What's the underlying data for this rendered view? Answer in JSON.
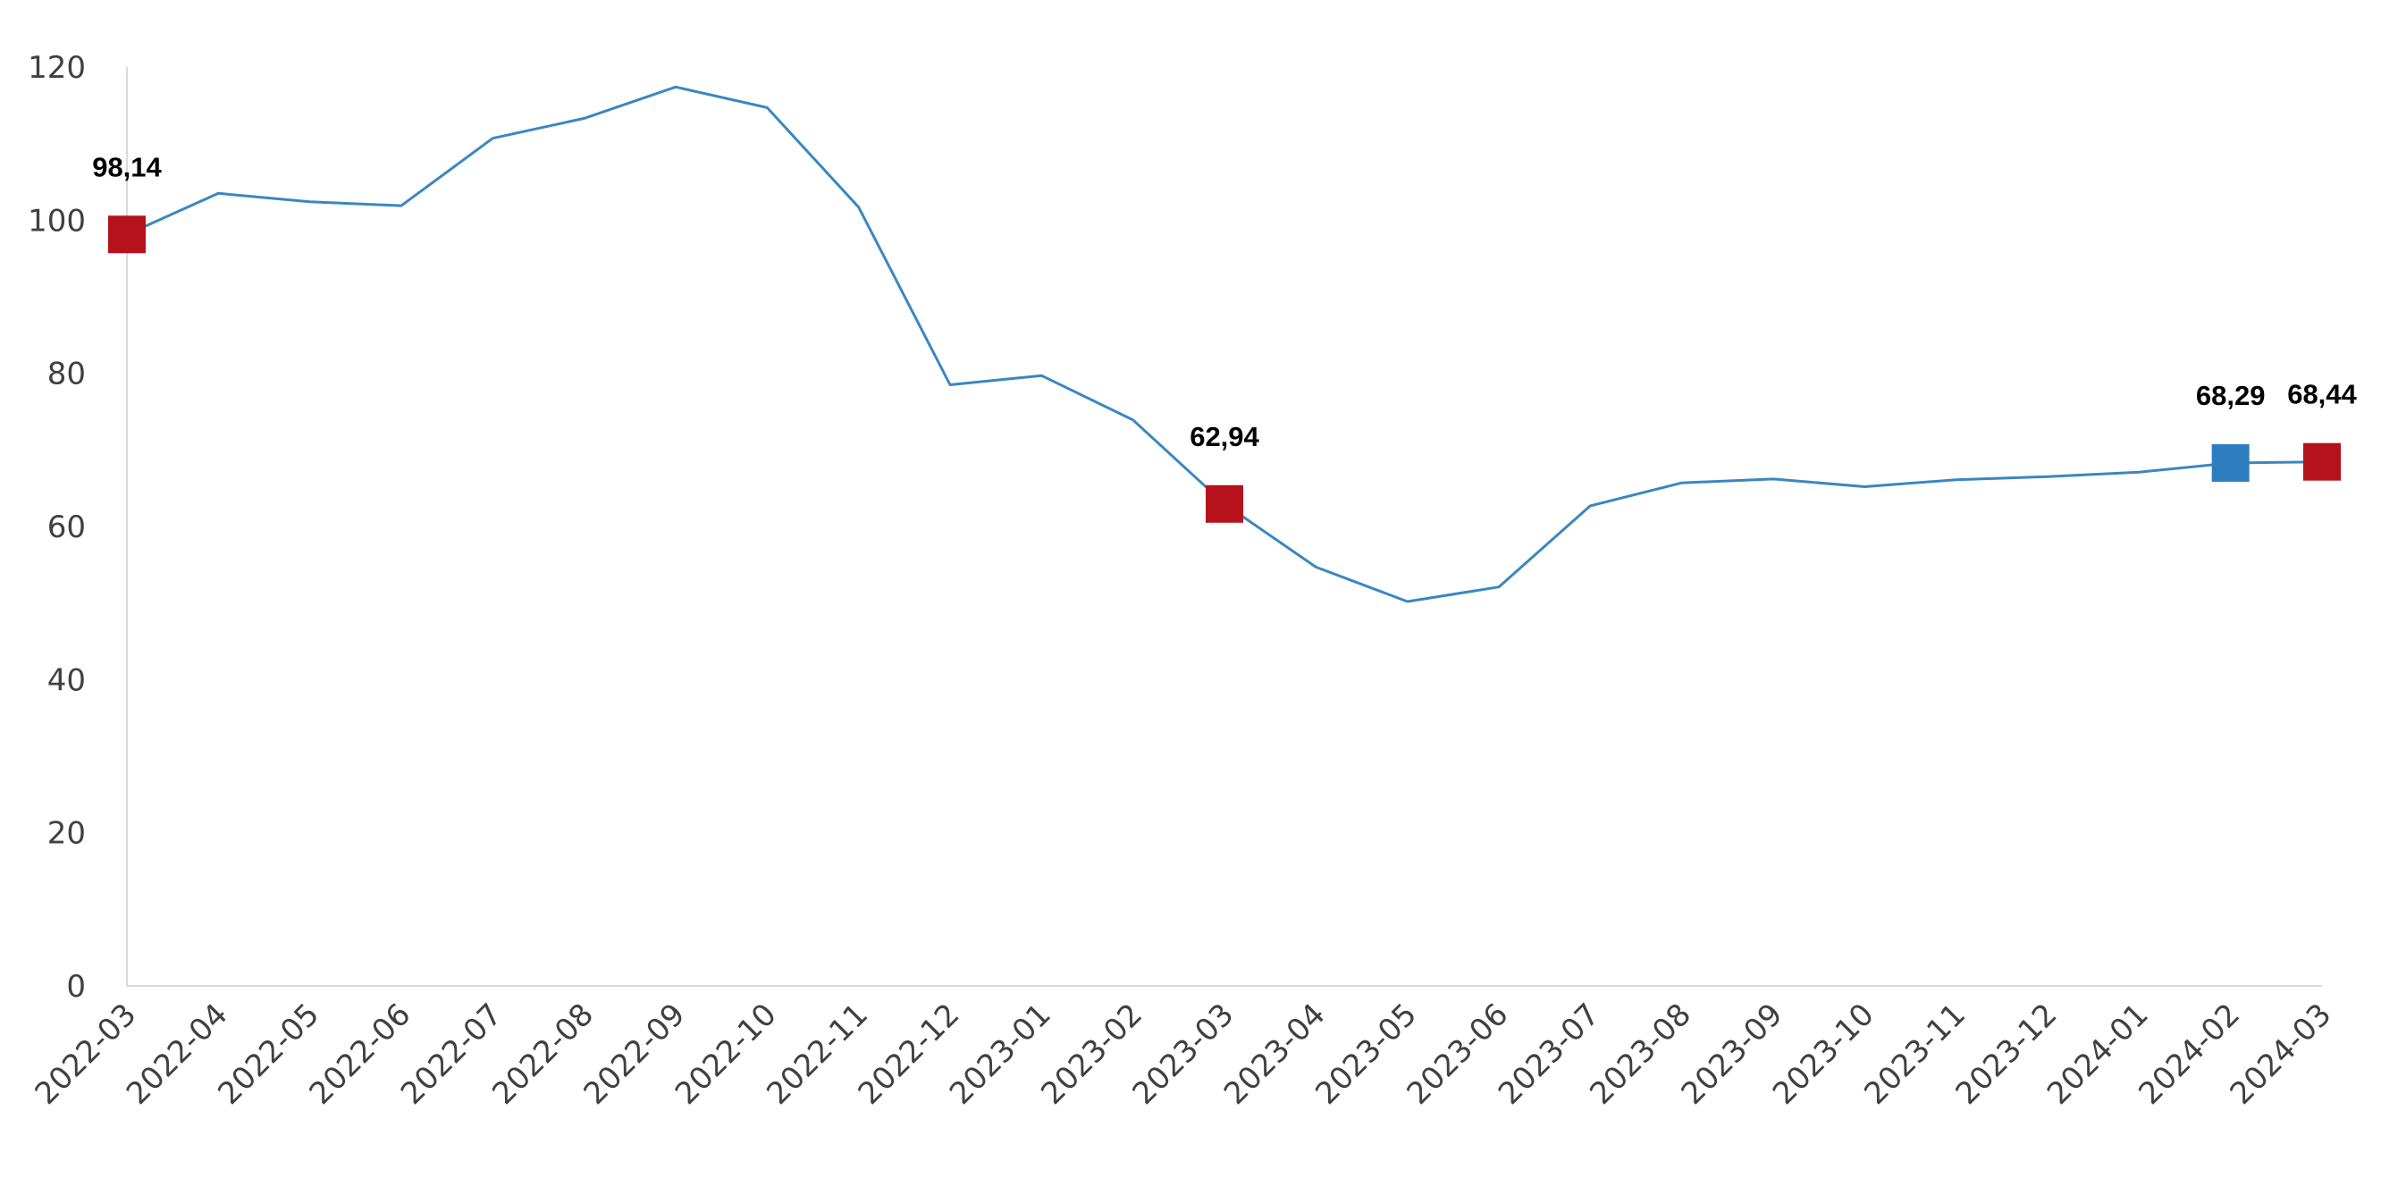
{
  "chart_data": {
    "type": "line",
    "title": "",
    "xlabel": "",
    "ylabel": "",
    "ylim": [
      0,
      120
    ],
    "yticks": [
      0,
      20,
      40,
      60,
      80,
      100,
      120
    ],
    "grid": false,
    "line_color": "#3a87c0",
    "highlight_color": "#b5121b",
    "highlight_alt_color": "#2e7ebf",
    "categories": [
      "2022-03",
      "2022-04",
      "2022-05",
      "2022-06",
      "2022-07",
      "2022-08",
      "2022-09",
      "2022-10",
      "2022-11",
      "2022-12",
      "2023-01",
      "2023-02",
      "2023-03",
      "2023-04",
      "2023-05",
      "2023-06",
      "2023-07",
      "2023-08",
      "2023-09",
      "2023-10",
      "2023-11",
      "2023-12",
      "2024-01",
      "2024-02",
      "2024-03"
    ],
    "values": [
      98.14,
      103.5,
      102.4,
      101.9,
      110.7,
      113.3,
      117.4,
      114.7,
      101.7,
      78.5,
      79.7,
      73.9,
      62.94,
      54.7,
      50.2,
      52.1,
      62.7,
      65.7,
      66.2,
      65.2,
      66.1,
      66.5,
      67.1,
      68.29,
      68.44
    ],
    "highlights": [
      {
        "index": 0,
        "label": "98,14",
        "color": "#b5121b"
      },
      {
        "index": 12,
        "label": "62,94",
        "color": "#b5121b"
      },
      {
        "index": 23,
        "label": "68,29",
        "color": "#2e7ebf"
      },
      {
        "index": 24,
        "label": "68,44",
        "color": "#b5121b"
      }
    ]
  }
}
